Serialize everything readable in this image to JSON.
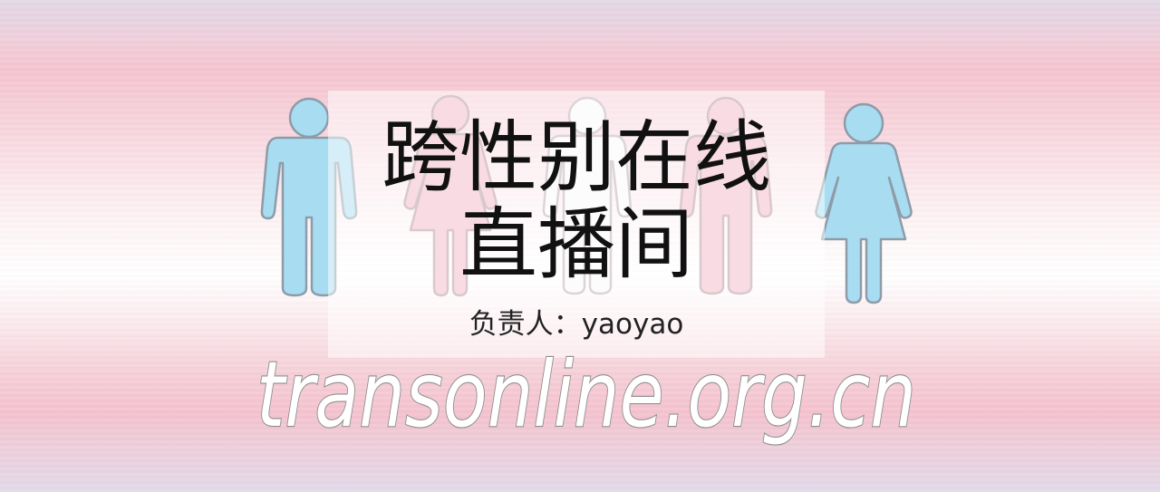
{
  "banner": {
    "title_line1": "跨性别在线",
    "title_line2": "直播间",
    "subtitle": "负责人：yaoyao",
    "watermark": "transonline.org.cn"
  },
  "figures": [
    {
      "icon": "man-figure-icon",
      "color": "#a8dcf1",
      "outline": "#8d9ca8"
    },
    {
      "icon": "woman-figure-icon",
      "color": "#f3b6c4",
      "outline": "#b08e97"
    },
    {
      "icon": "person-figure-icon",
      "color": "#fbf8f9",
      "outline": "#b7a8ae"
    },
    {
      "icon": "man-figure-icon",
      "color": "#f3b6c4",
      "outline": "#b08e97"
    },
    {
      "icon": "woman-figure-icon",
      "color": "#a8dcf1",
      "outline": "#8d9ca8"
    }
  ],
  "colors": {
    "flag_blue": "#a8dcf1",
    "flag_pink": "#f3b6c4",
    "flag_white": "#ffffff",
    "title_text": "#111111"
  }
}
